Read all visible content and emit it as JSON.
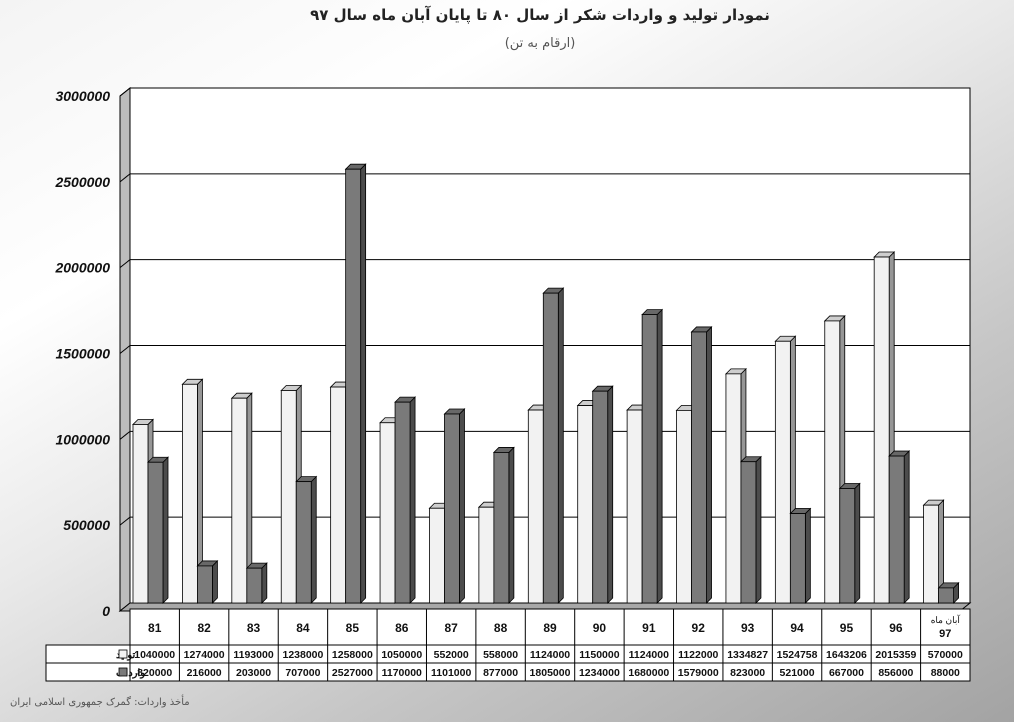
{
  "title": "نمودار تولید و واردات شکر از سال ۸۰ تا پایان آبان ماه سال ۹۷",
  "subtitle": "(ارقام به تن)",
  "source": "مأخذ واردات: گمرک جمهوری اسلامی ایران",
  "colors": {
    "production": "#f2f2f2",
    "imports": "#7a7a7a",
    "wall": "#ffffff",
    "grid": "#000000"
  },
  "chart_data": {
    "type": "bar",
    "title": "نمودار تولید و واردات شکر از سال ۸۰ تا پایان آبان ماه سال ۹۷",
    "subtitle": "(ارقام به تن)",
    "xlabel": "",
    "ylabel": "",
    "ylim": [
      0,
      3000000
    ],
    "yticks": [
      "0",
      "500000",
      "1000000",
      "1500000",
      "2000000",
      "2500000",
      "3000000"
    ],
    "grid": true,
    "categories": [
      "81",
      "82",
      "83",
      "84",
      "85",
      "86",
      "87",
      "88",
      "89",
      "90",
      "91",
      "92",
      "93",
      "94",
      "95",
      "96",
      "آبان ماه 97"
    ],
    "series": [
      {
        "name": "تولید",
        "values": [
          1040000,
          1274000,
          1193000,
          1238000,
          1258000,
          1050000,
          552000,
          558000,
          1124000,
          1150000,
          1124000,
          1122000,
          1334827,
          1524758,
          1643206,
          2015359,
          570000
        ],
        "labels": [
          "1040000",
          "1274000",
          "1193000",
          "1238000",
          "1258000",
          "1050000",
          "552000",
          "558000",
          "1124000",
          "1150000",
          "1124000",
          "1122000",
          "1334827",
          "1524758",
          "1643206",
          "2015359",
          "570000"
        ]
      },
      {
        "name": "واردات",
        "values": [
          820000,
          216000,
          203000,
          707000,
          2527000,
          1170000,
          1101000,
          877000,
          1805000,
          1234000,
          1680000,
          1579000,
          823000,
          521000,
          667000,
          856000,
          88000
        ],
        "labels": [
          "820000",
          "216000",
          "203000",
          "707000",
          "2527000",
          "1170000",
          "1101000",
          "877000",
          "1805000",
          "1234000",
          "1680000",
          "1579000",
          "823000",
          "521000",
          "667000",
          "856000",
          "88000"
        ]
      }
    ]
  }
}
